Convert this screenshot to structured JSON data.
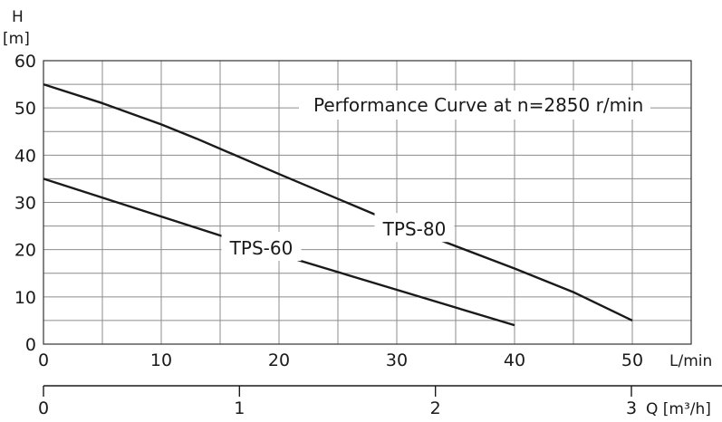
{
  "chart_data": {
    "type": "line",
    "title": "Performance Curve at n=2850 r/min",
    "ylabel_symbol": "H",
    "ylabel_unit": "[m]",
    "xlabel": "L/min",
    "x2label": "Q [m³/h]",
    "ylim": [
      0,
      60
    ],
    "xlim": [
      0,
      50
    ],
    "x2lim": [
      0,
      3
    ],
    "y_ticks": [
      "0",
      "10",
      "20",
      "30",
      "40",
      "50",
      "60"
    ],
    "x_ticks": [
      "0",
      "10",
      "20",
      "30",
      "40",
      "50"
    ],
    "x2_ticks": [
      "0",
      "1",
      "2",
      "3"
    ],
    "grid": true,
    "series": [
      {
        "name": "TPS-80",
        "x": [
          0,
          5,
          10,
          13,
          20,
          30,
          40,
          45,
          50
        ],
        "y": [
          55,
          51,
          46.5,
          43.5,
          36,
          25.5,
          16,
          11,
          5
        ]
      },
      {
        "name": "TPS-60",
        "x": [
          0,
          5,
          10,
          20,
          30,
          40
        ],
        "y": [
          35,
          31,
          27,
          19,
          11.5,
          4
        ]
      }
    ]
  }
}
